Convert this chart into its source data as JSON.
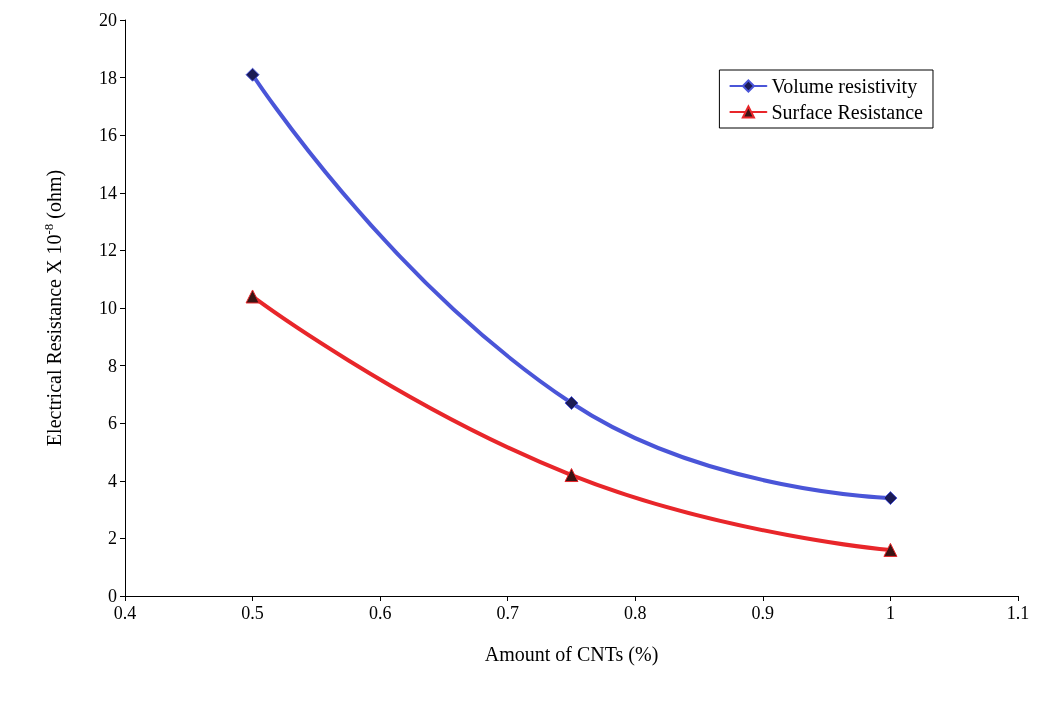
{
  "chart_data": {
    "type": "line",
    "xlabel": "Amount of CNTs (%)",
    "ylabel": "Electrical Resistance X 10$^{-8}$ (ohm)",
    "x": [
      0.5,
      0.75,
      1
    ],
    "series": [
      {
        "name": "Volume resistivity",
        "color": "#4a55d8",
        "marker": "diamond",
        "values": [
          18.1,
          6.7,
          3.4
        ]
      },
      {
        "name": "Surface Resistance",
        "color": "#e8262a",
        "marker": "triangle",
        "values": [
          10.4,
          4.2,
          1.6
        ]
      }
    ],
    "xlim": [
      0.4,
      1.1
    ],
    "xticks": [
      0.4,
      0.5,
      0.6,
      0.7,
      0.8,
      0.9,
      1,
      1.1
    ],
    "ylim": [
      0,
      20
    ],
    "yticks": [
      0,
      2,
      4,
      6,
      8,
      10,
      12,
      14,
      16,
      18,
      20
    ],
    "grid": false,
    "legend": "top right",
    "line_style": "solid"
  }
}
